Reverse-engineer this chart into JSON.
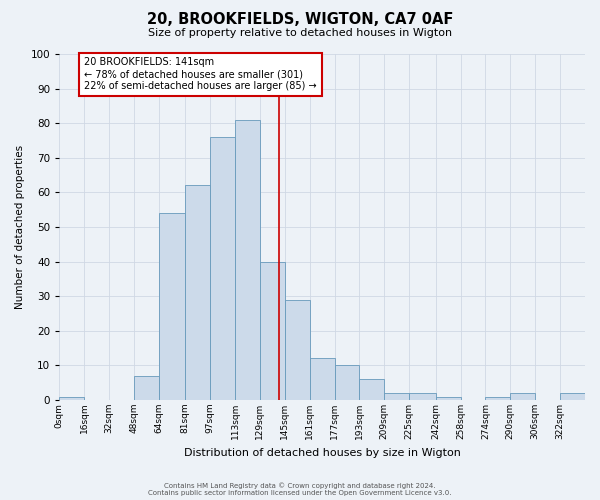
{
  "title": "20, BROOKFIELDS, WIGTON, CA7 0AF",
  "subtitle": "Size of property relative to detached houses in Wigton",
  "xlabel": "Distribution of detached houses by size in Wigton",
  "ylabel": "Number of detached properties",
  "bin_labels": [
    "0sqm",
    "16sqm",
    "32sqm",
    "48sqm",
    "64sqm",
    "81sqm",
    "97sqm",
    "113sqm",
    "129sqm",
    "145sqm",
    "161sqm",
    "177sqm",
    "193sqm",
    "209sqm",
    "225sqm",
    "242sqm",
    "258sqm",
    "274sqm",
    "290sqm",
    "306sqm",
    "322sqm"
  ],
  "bin_edges": [
    0,
    16,
    32,
    48,
    64,
    81,
    97,
    113,
    129,
    145,
    161,
    177,
    193,
    209,
    225,
    242,
    258,
    274,
    290,
    306,
    322,
    338
  ],
  "bar_heights": [
    1,
    0,
    0,
    7,
    54,
    62,
    76,
    81,
    40,
    29,
    12,
    10,
    6,
    2,
    2,
    1,
    0,
    1,
    2,
    0,
    2
  ],
  "bar_color": "#ccdaea",
  "bar_edge_color": "#6699bb",
  "grid_color": "#d0d8e4",
  "bg_color": "#edf2f7",
  "vline_x": 141,
  "vline_color": "#cc0000",
  "annotation_text": "20 BROOKFIELDS: 141sqm\n← 78% of detached houses are smaller (301)\n22% of semi-detached houses are larger (85) →",
  "annotation_box_color": "#ffffff",
  "annotation_box_edge_color": "#cc0000",
  "footer_line1": "Contains HM Land Registry data © Crown copyright and database right 2024.",
  "footer_line2": "Contains public sector information licensed under the Open Government Licence v3.0.",
  "ylim": [
    0,
    100
  ],
  "yticks": [
    0,
    10,
    20,
    30,
    40,
    50,
    60,
    70,
    80,
    90,
    100
  ],
  "title_fontsize": 10.5,
  "subtitle_fontsize": 8,
  "ylabel_fontsize": 7.5,
  "xlabel_fontsize": 8,
  "ytick_fontsize": 7.5,
  "xtick_fontsize": 6.5,
  "annotation_fontsize": 7,
  "footer_fontsize": 5
}
